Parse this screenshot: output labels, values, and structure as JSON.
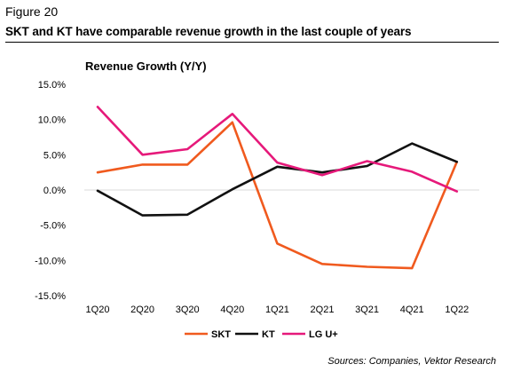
{
  "figure_label": "Figure 20",
  "figure_title": "SKT and KT have comparable revenue growth in the last couple of years",
  "source": "Sources: Companies, Vektor Research",
  "chart_data": {
    "type": "line",
    "title": "Revenue Growth (Y/Y)",
    "xlabel": "",
    "ylabel": "",
    "categories": [
      "1Q20",
      "2Q20",
      "3Q20",
      "4Q20",
      "1Q21",
      "2Q21",
      "3Q21",
      "4Q21",
      "1Q22"
    ],
    "ylim": [
      -15,
      15
    ],
    "yticks": [
      15,
      10,
      5,
      0,
      -5,
      -10,
      -15
    ],
    "ytick_labels": [
      "15.0%",
      "10.0%",
      "5.0%",
      "0.0%",
      "-5.0%",
      "-10.0%",
      "-15.0%"
    ],
    "grid": false,
    "legend_position": "bottom-center",
    "series": [
      {
        "name": "SKT",
        "color": "#f05a1e",
        "values": [
          2.5,
          3.6,
          3.6,
          9.6,
          -7.6,
          -10.5,
          -10.9,
          -11.1,
          4.0
        ]
      },
      {
        "name": "KT",
        "color": "#111111",
        "values": [
          -0.1,
          -3.6,
          -3.5,
          0.1,
          3.3,
          2.5,
          3.4,
          6.6,
          4.0
        ]
      },
      {
        "name": "LG U+",
        "color": "#e6197a",
        "values": [
          11.8,
          5.0,
          5.8,
          10.8,
          3.9,
          2.1,
          4.1,
          2.6,
          -0.2
        ]
      }
    ]
  }
}
